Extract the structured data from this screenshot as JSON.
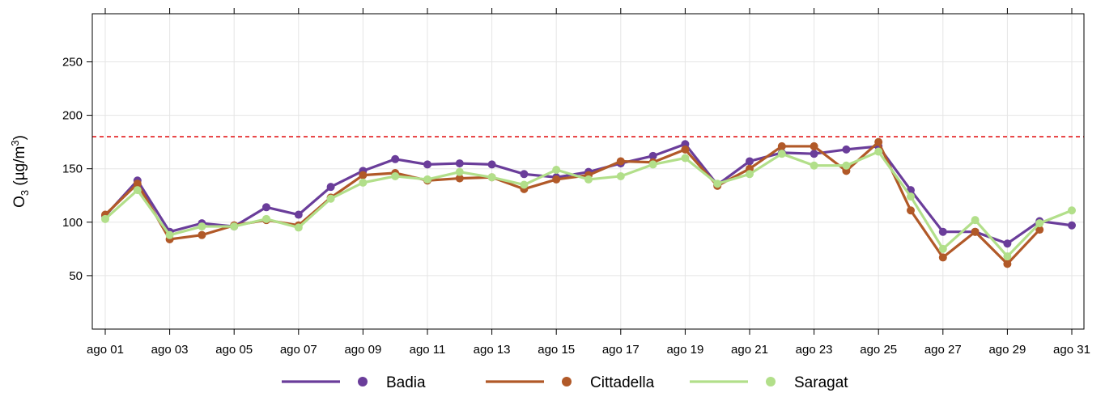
{
  "chart_data": {
    "type": "line",
    "ylabel": {
      "base": "O",
      "sub": "3",
      "unit_pre": " (µg/m",
      "unit_sup": "3",
      "unit_post": ")"
    },
    "ylim": [
      0,
      295
    ],
    "yticks": [
      50,
      100,
      150,
      200,
      250
    ],
    "x_count": 31,
    "x_tick_labels": [
      "ago 01",
      "ago 03",
      "ago 05",
      "ago 07",
      "ago 09",
      "ago 11",
      "ago 13",
      "ago 15",
      "ago 17",
      "ago 19",
      "ago 21",
      "ago 23",
      "ago 25",
      "ago 27",
      "ago 29",
      "ago 31"
    ],
    "threshold": {
      "value": 180,
      "color": "#e31a1c"
    },
    "grid": true,
    "legend_position": "bottom",
    "series": [
      {
        "name": "Badia",
        "color": "#6a3d9a",
        "values": [
          106,
          139,
          91,
          99,
          96,
          114,
          107,
          133,
          148,
          159,
          154,
          155,
          154,
          145,
          142,
          147,
          155,
          162,
          173,
          135,
          157,
          165,
          164,
          168,
          171,
          130,
          91,
          91,
          80,
          101,
          97
        ]
      },
      {
        "name": "Cittadella",
        "color": "#b15928",
        "values": [
          107,
          136,
          84,
          88,
          97,
          102,
          97,
          123,
          144,
          146,
          139,
          141,
          142,
          131,
          140,
          144,
          157,
          156,
          168,
          134,
          150,
          171,
          171,
          148,
          175,
          111,
          67,
          91,
          61,
          93,
          null
        ]
      },
      {
        "name": "Saragat",
        "color": "#b2df8a",
        "values": [
          103,
          130,
          88,
          96,
          96,
          103,
          95,
          122,
          137,
          143,
          140,
          147,
          142,
          135,
          149,
          140,
          143,
          154,
          160,
          136,
          145,
          164,
          153,
          153,
          166,
          124,
          75,
          102,
          68,
          99,
          111
        ]
      }
    ]
  }
}
